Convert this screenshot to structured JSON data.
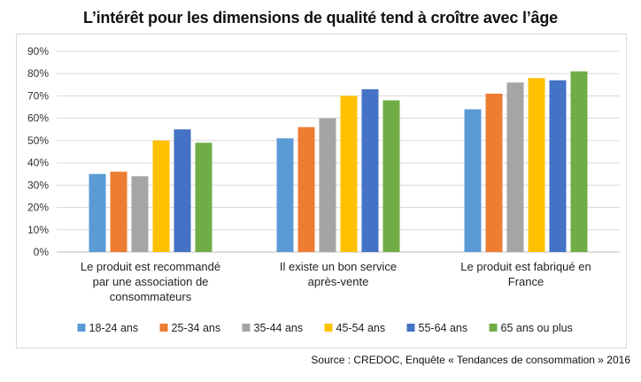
{
  "source_note": "Source : CREDOC, Enquête « Tendances de consommation » 2016",
  "chart_data": {
    "type": "bar",
    "title": "L’intérêt pour les dimensions de qualité tend à croître avec l’âge",
    "categories": [
      [
        "Le produit est recommandé",
        "par une association de",
        "consommateurs"
      ],
      [
        "Il existe un bon service",
        "après-vente"
      ],
      [
        "Le produit est fabriqué en",
        "France"
      ]
    ],
    "series": [
      {
        "name": "18-24 ans",
        "color": "#5b9bd5",
        "values": [
          35,
          51,
          64
        ]
      },
      {
        "name": "25-34 ans",
        "color": "#ed7d31",
        "values": [
          36,
          56,
          71
        ]
      },
      {
        "name": "35-44 ans",
        "color": "#a5a5a5",
        "values": [
          34,
          60,
          76
        ]
      },
      {
        "name": "45-54 ans",
        "color": "#ffc000",
        "values": [
          50,
          70,
          78
        ]
      },
      {
        "name": "55-64 ans",
        "color": "#4472c4",
        "values": [
          55,
          73,
          77
        ]
      },
      {
        "name": "65 ans ou plus",
        "color": "#70ad47",
        "values": [
          49,
          68,
          81
        ]
      }
    ],
    "ylim": [
      0,
      90
    ],
    "yticks": [
      "0%",
      "10%",
      "20%",
      "30%",
      "40%",
      "50%",
      "60%",
      "70%",
      "80%",
      "90%"
    ],
    "grid": true,
    "legend_position": "bottom"
  }
}
